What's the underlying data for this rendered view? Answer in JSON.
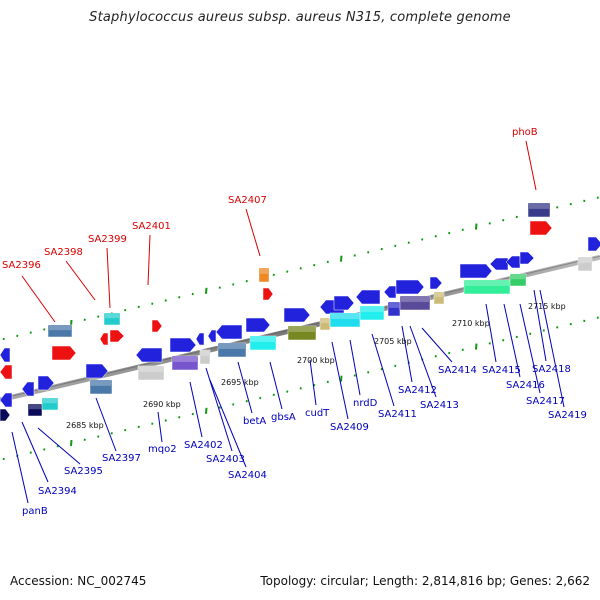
{
  "title": "Staphylococcus aureus subsp. aureus N315, complete genome",
  "footer": {
    "accession": "Accession: NC_002745",
    "topology": "Topology: circular; Length: 2,814,816 bp; Genes: 2,662"
  },
  "colors": {
    "above_label": "#dd0000",
    "below_label": "#0000bb",
    "backbone": "#888888",
    "tick": "#119911"
  },
  "scale_labels": [
    "2685 kbp",
    "2690 kbp",
    "2695 kbp",
    "2700 kbp",
    "2705 kbp",
    "2710 kbp",
    "2715 kbp"
  ],
  "labels_above": [
    "SA2396",
    "SA2398",
    "SA2399",
    "SA2401",
    "SA2407",
    "phoB"
  ],
  "labels_below": [
    "panB",
    "SA2394",
    "SA2395",
    "SA2397",
    "mqo2",
    "SA2402",
    "SA2403",
    "SA2404",
    "betA",
    "gbsA",
    "cudT",
    "SA2409",
    "nrdD",
    "SA2411",
    "SA2412",
    "SA2413",
    "SA2414",
    "SA2415",
    "SA2416",
    "SA2417",
    "SA2418",
    "SA2419"
  ]
}
